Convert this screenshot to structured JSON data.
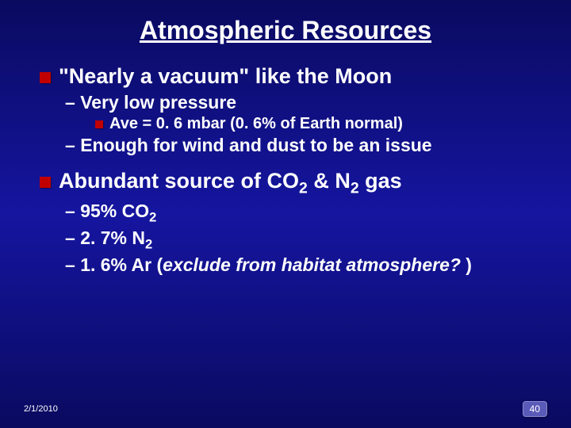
{
  "title": "Atmospheric Resources",
  "bullet1": {
    "text": "\"Nearly a vacuum\" like the Moon"
  },
  "sub1a": {
    "dash": "– ",
    "text": "Very low pressure"
  },
  "sub1a1": {
    "text": "Ave = 0. 6 mbar (0. 6% of Earth normal)"
  },
  "sub1b": {
    "dash": "– ",
    "text": "Enough for wind and dust to be an issue"
  },
  "bullet2": {
    "pre": "Abundant source of CO",
    "sub1": "2",
    "mid": " & N",
    "sub2": "2",
    "post": " gas"
  },
  "sub2a": {
    "dash": "– ",
    "pre": "95% CO",
    "sub": "2"
  },
  "sub2b": {
    "dash": "– ",
    "pre": "2. 7% N",
    "sub": "2"
  },
  "sub2c": {
    "dash": "– ",
    "pre": "1. 6% Ar (",
    "italic": "exclude from habitat atmosphere? ",
    "post": ")"
  },
  "footer": {
    "date": "2/1/2010",
    "num": "40"
  },
  "colors": {
    "bullet": "#c00000",
    "text": "#ffffff",
    "bg_top": "#0a0a60",
    "bg_mid": "#1515a0"
  }
}
